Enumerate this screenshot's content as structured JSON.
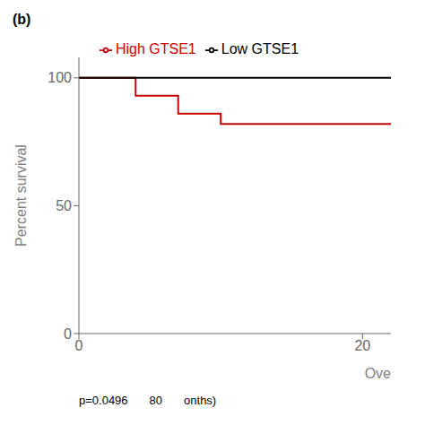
{
  "chart_data": {
    "type": "step",
    "title": "(b)",
    "x_label": "Ove",
    "y_label": "Percent survival",
    "annotations": [
      "p=0.0496",
      "80",
      "onths)"
    ],
    "xlim": [
      0,
      22
    ],
    "xticks": [
      0,
      20
    ],
    "ylim": [
      0,
      108
    ],
    "yticks": [
      0,
      50,
      100
    ],
    "grid": false,
    "legend": "top",
    "series": [
      {
        "name": "High GTSE1",
        "color": "#cc0000",
        "x": [
          0,
          4,
          4,
          7,
          7,
          10,
          10,
          22
        ],
        "values": [
          100,
          100,
          93,
          93,
          86,
          86,
          82,
          82
        ]
      },
      {
        "name": "Low GTSE1",
        "color": "#000000",
        "x": [
          0,
          22
        ],
        "values": [
          100,
          100
        ]
      }
    ]
  }
}
